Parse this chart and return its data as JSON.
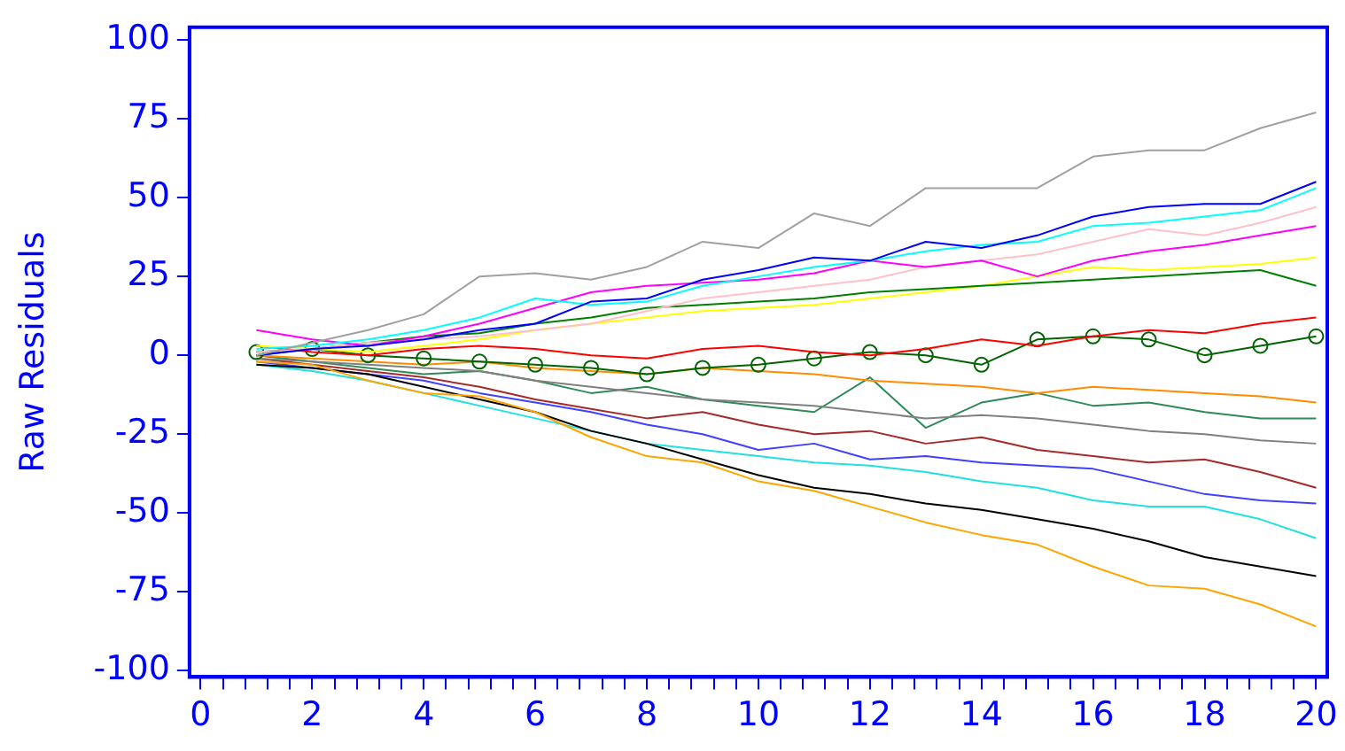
{
  "chart_data": {
    "type": "line",
    "ylabel": "Raw Residuals",
    "xlim": [
      -0.2,
      20.2
    ],
    "ylim": [
      -102,
      104
    ],
    "xticks": [
      0,
      {
        "value": 0.4,
        "label": null
      },
      {
        "value": 0.8,
        "label": null
      },
      {
        "value": 1.2,
        "label": null
      },
      {
        "value": 1.6,
        "label": null
      },
      2,
      {
        "value": 2.4,
        "label": null
      },
      {
        "value": 2.8,
        "label": null
      },
      {
        "value": 3.2,
        "label": null
      },
      {
        "value": 3.6,
        "label": null
      },
      4,
      {
        "value": 4.4,
        "label": null
      },
      {
        "value": 4.8,
        "label": null
      },
      {
        "value": 5.2,
        "label": null
      },
      {
        "value": 5.6,
        "label": null
      },
      6,
      {
        "value": 6.4,
        "label": null
      },
      {
        "value": 6.8,
        "label": null
      },
      {
        "value": 7.2,
        "label": null
      },
      {
        "value": 7.6,
        "label": null
      },
      8,
      {
        "value": 8.4,
        "label": null
      },
      {
        "value": 8.8,
        "label": null
      },
      {
        "value": 9.2,
        "label": null
      },
      {
        "value": 9.6,
        "label": null
      },
      10,
      {
        "value": 10.4,
        "label": null
      },
      {
        "value": 10.8,
        "label": null
      },
      {
        "value": 11.2,
        "label": null
      },
      {
        "value": 11.6,
        "label": null
      },
      12,
      {
        "value": 12.4,
        "label": null
      },
      {
        "value": 12.8,
        "label": null
      },
      {
        "value": 13.2,
        "label": null
      },
      {
        "value": 13.6,
        "label": null
      },
      14,
      {
        "value": 14.4,
        "label": null
      },
      {
        "value": 14.8,
        "label": null
      },
      {
        "value": 15.2,
        "label": null
      },
      {
        "value": 15.6,
        "label": null
      },
      16,
      {
        "value": 16.4,
        "label": null
      },
      {
        "value": 16.8,
        "label": null
      },
      {
        "value": 17.2,
        "label": null
      },
      {
        "value": 17.6,
        "label": null
      },
      18,
      {
        "value": 18.4,
        "label": null
      },
      {
        "value": 18.8,
        "label": null
      },
      {
        "value": 19.2,
        "label": null
      },
      {
        "value": 19.6,
        "label": null
      },
      20
    ],
    "yticks": [
      -100,
      -75,
      -50,
      -25,
      0,
      25,
      50,
      75,
      100
    ],
    "x": [
      1,
      2,
      3,
      4,
      5,
      6,
      7,
      8,
      9,
      10,
      11,
      12,
      13,
      14,
      15,
      16,
      17,
      18,
      19,
      20
    ],
    "grid": false,
    "legend": false,
    "marker": "none",
    "line_style": "solid",
    "series": [
      {
        "color": "#a0a0a0",
        "values": [
          0,
          4,
          8,
          13,
          25,
          26,
          24,
          28,
          36,
          34,
          45,
          41,
          53,
          53,
          53,
          63,
          65,
          65,
          72,
          77
        ]
      },
      {
        "color": "#ffa500",
        "values": [
          -2,
          -3,
          -8,
          -12,
          -13,
          -18,
          -26,
          -32,
          -34,
          -40,
          -43,
          -48,
          -53,
          -57,
          -60,
          -67,
          -73,
          -74,
          -79,
          -86
        ]
      },
      {
        "color": "#000000",
        "values": [
          -3,
          -4,
          -6,
          -10,
          -14,
          -18,
          -24,
          -28,
          -33,
          -38,
          -42,
          -44,
          -47,
          -49,
          -52,
          -55,
          -59,
          -64,
          -67,
          -70
        ]
      },
      {
        "color": "#0000ff",
        "values": [
          0,
          2,
          3,
          5,
          8,
          10,
          17,
          18,
          24,
          27,
          31,
          30,
          36,
          34,
          38,
          44,
          47,
          48,
          48,
          55
        ]
      },
      {
        "color": "#00ffff",
        "values": [
          2,
          3,
          5,
          8,
          12,
          18,
          16,
          17,
          22,
          25,
          28,
          30,
          33,
          35,
          36,
          41,
          42,
          44,
          46,
          53
        ]
      },
      {
        "color": "#ff00ff",
        "values": [
          8,
          5,
          3,
          6,
          10,
          15,
          20,
          22,
          23,
          24,
          26,
          30,
          28,
          30,
          25,
          30,
          33,
          35,
          38,
          41
        ]
      },
      {
        "color": "#ffc0cb",
        "values": [
          1,
          2,
          4,
          5,
          6,
          8,
          10,
          14,
          18,
          20,
          22,
          24,
          28,
          30,
          32,
          36,
          40,
          38,
          42,
          47
        ]
      },
      {
        "color": "#008000",
        "values": [
          0,
          2,
          4,
          6,
          7,
          10,
          12,
          15,
          16,
          17,
          18,
          20,
          21,
          22,
          23,
          24,
          25,
          26,
          27,
          22
        ]
      },
      {
        "color": "#ffff00",
        "values": [
          3,
          2,
          1,
          3,
          5,
          8,
          10,
          12,
          14,
          15,
          16,
          18,
          20,
          22,
          25,
          28,
          27,
          28,
          29,
          31
        ]
      },
      {
        "color": "#ff0000",
        "values": [
          3,
          1,
          0,
          2,
          3,
          2,
          0,
          -1,
          2,
          3,
          1,
          0,
          2,
          5,
          3,
          6,
          8,
          7,
          10,
          12
        ]
      },
      {
        "color": "#006400",
        "marker": "circle",
        "values": [
          1,
          2,
          0,
          -1,
          -2,
          -3,
          -4,
          -6,
          -4,
          -3,
          -1,
          1,
          0,
          -3,
          5,
          6,
          5,
          0,
          3,
          6
        ]
      },
      {
        "color": "#ff8c00",
        "values": [
          0,
          -1,
          -2,
          -3,
          -2,
          -4,
          -5,
          -6,
          -4,
          -5,
          -6,
          -8,
          -9,
          -10,
          -12,
          -10,
          -11,
          -12,
          -13,
          -15
        ]
      },
      {
        "color": "#808080",
        "values": [
          -1,
          -2,
          -3,
          -4,
          -5,
          -8,
          -10,
          -12,
          -14,
          -15,
          -16,
          -18,
          -20,
          -19,
          -20,
          -22,
          -24,
          -25,
          -27,
          -28
        ]
      },
      {
        "color": "#2e8b57",
        "values": [
          0,
          -2,
          -4,
          -6,
          -5,
          -8,
          -12,
          -10,
          -14,
          -16,
          -18,
          -7,
          -23,
          -15,
          -12,
          -16,
          -15,
          -18,
          -20,
          -20
        ]
      },
      {
        "color": "#a52a2a",
        "values": [
          -1,
          -3,
          -5,
          -7,
          -10,
          -14,
          -17,
          -20,
          -18,
          -22,
          -25,
          -24,
          -28,
          -26,
          -30,
          -32,
          -34,
          -33,
          -37,
          -42
        ]
      },
      {
        "color": "#4040ff",
        "values": [
          -2,
          -4,
          -6,
          -8,
          -12,
          -15,
          -18,
          -22,
          -25,
          -30,
          -28,
          -33,
          -32,
          -34,
          -35,
          -36,
          -40,
          -44,
          -46,
          -47
        ]
      },
      {
        "color": "#20e0e0",
        "values": [
          -3,
          -5,
          -8,
          -12,
          -16,
          -20,
          -24,
          -28,
          -30,
          -32,
          -34,
          -35,
          -37,
          -40,
          -42,
          -46,
          -48,
          -48,
          -52,
          -58
        ]
      }
    ]
  }
}
